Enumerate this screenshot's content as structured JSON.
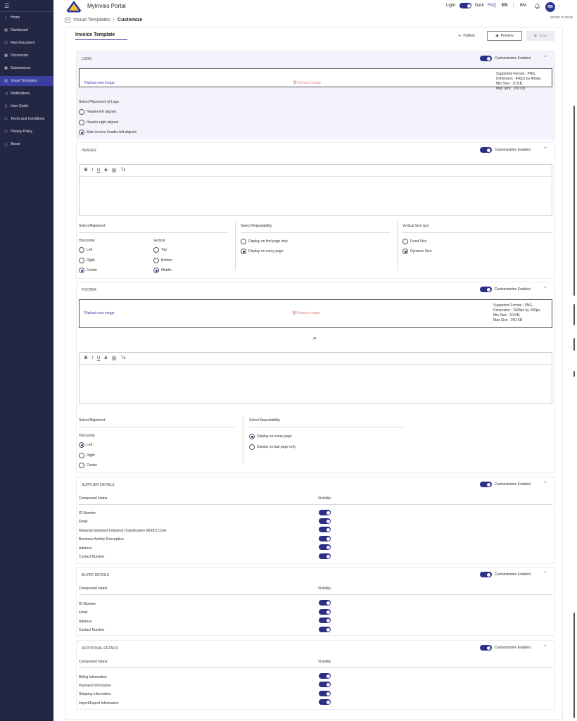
{
  "sidebar": {
    "menu_icon": "☰",
    "items": [
      {
        "label": "Home",
        "icon": "⌂"
      },
      {
        "label": "Dashboard",
        "icon": "▤"
      },
      {
        "label": "New Document",
        "icon": "▢"
      },
      {
        "label": "Documents",
        "icon": "▦"
      },
      {
        "label": "Submissions",
        "icon": "▣"
      },
      {
        "label": "Visual Templates",
        "icon": "▥"
      },
      {
        "label": "Notifications",
        "icon": "◁"
      },
      {
        "label": "User Guide",
        "icon": "▯"
      },
      {
        "label": "Terms and Conditions",
        "icon": "▭"
      },
      {
        "label": "Privacy Policy",
        "icon": "▭"
      },
      {
        "label": "About",
        "icon": "ⓘ"
      }
    ]
  },
  "header": {
    "app_title": "MyInvois Portal",
    "light": "Light",
    "dark": "Dark",
    "faq": "FAQ",
    "lang_en": "EN",
    "lang_bm": "BM",
    "avatar": "RB",
    "user_name": "WONG ZI NING"
  },
  "breadcrumb": {
    "parent": "Visual Templates",
    "current": "Customize"
  },
  "page": {
    "title": "Invoice Template",
    "publish": "Publish",
    "preview": "Preview",
    "save": "Save"
  },
  "common": {
    "custom_enabled": "Customization Enabled",
    "upload": "Upload new image",
    "remove": "Remove image",
    "component_name": "Component Name",
    "visibility": "Visibility"
  },
  "logo": {
    "heading": "LOGO",
    "specs": [
      "Supported Format : PNG,",
      "Dimension : 400px by 400px,",
      "Min Size : 10 KB,",
      "Max Size : 250 KB"
    ],
    "placement_label": "Select Placement of Logo",
    "options": [
      "Header-left aligned",
      "Header-right aligned",
      "Main invoice header-left aligned"
    ],
    "selected": 2
  },
  "header_section": {
    "heading": "HEADER",
    "toolbar": [
      "B",
      "I",
      "U",
      "S",
      "⛓",
      "Tx"
    ],
    "align_label": "Select Alignment",
    "horizontal": "Horizontal",
    "vertical": "Vertical",
    "h_opts": [
      "Left",
      "Right",
      "Center"
    ],
    "v_opts": [
      "Top",
      "Bottom",
      "Middle"
    ],
    "repeat_label": "Select Repeatability",
    "repeat_opts": [
      "Display on first page only",
      "Display on every page"
    ],
    "size_label": "Vertical Size (px)",
    "size_opts": [
      "Fixed Size",
      "Dynamic Size"
    ]
  },
  "footer": {
    "heading": "FOOTER",
    "specs": [
      "Supported Format : PNG,",
      "Dimension : 1028px by 200px,",
      "Min Size : 10 KB,",
      "Max Size : 250 KB"
    ],
    "or": "or",
    "align_label": "Select Alignment",
    "horizontal": "Horizontal",
    "h_opts": [
      "Left",
      "Right",
      "Center"
    ],
    "repeat_label": "Select Repeatability",
    "repeat_opts": [
      "Display on every page",
      "Display on last page only"
    ]
  },
  "supplier": {
    "heading": "SUPPLIER DETAILS",
    "rows": [
      "ID Number",
      "Email",
      "Malaysia Standard Industrial Classification (MSIC) Code",
      "Business Activity Description",
      "Address",
      "Contact Number"
    ]
  },
  "buyer": {
    "heading": "BUYER DETAILS",
    "rows": [
      "ID Number",
      "Email",
      "Address",
      "Contact Number"
    ]
  },
  "additional": {
    "heading": "ADDITIONAL DETAILS",
    "rows": [
      "Billing Information",
      "Payment Information",
      "Shipping Information",
      "Import/Export Information"
    ]
  }
}
